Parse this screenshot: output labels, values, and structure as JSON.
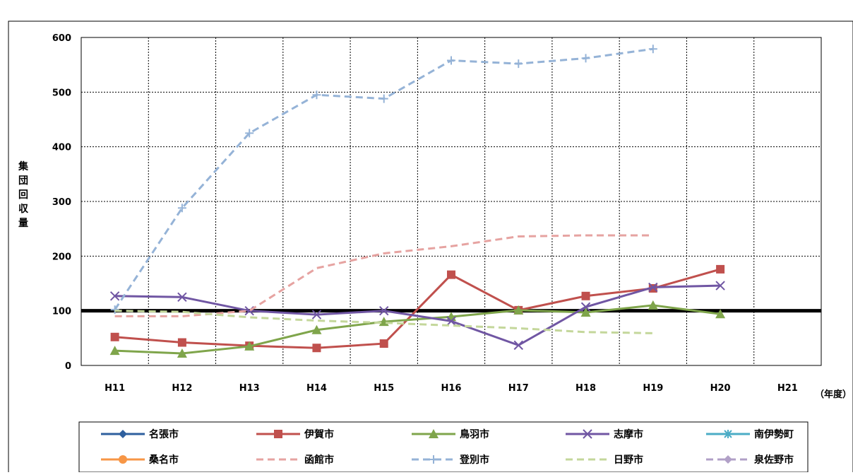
{
  "chart_data": {
    "type": "line",
    "title": "",
    "xlabel": "",
    "x_unit": "（年度）",
    "ylabel": "集団回収量",
    "ylim": [
      0,
      600
    ],
    "yticks": [
      0,
      100,
      200,
      300,
      400,
      500,
      600
    ],
    "grid": true,
    "reference_line": 100,
    "legend_position": "bottom",
    "categories": [
      "H11",
      "H12",
      "H13",
      "H14",
      "H15",
      "H16",
      "H17",
      "H18",
      "H19",
      "H20",
      "H21"
    ],
    "series": [
      {
        "name": "名張市",
        "color": "#2e5f9e",
        "style": "solid",
        "marker": "diamond",
        "values": [
          null,
          null,
          null,
          null,
          null,
          null,
          null,
          null,
          null,
          null,
          null
        ]
      },
      {
        "name": "伊賀市",
        "color": "#c0504d",
        "style": "solid",
        "marker": "square",
        "values": [
          52,
          42,
          36,
          32,
          40,
          166,
          101,
          127,
          141,
          176,
          null
        ]
      },
      {
        "name": "鳥羽市",
        "color": "#7fa54b",
        "style": "solid",
        "marker": "triangle",
        "values": [
          27,
          22,
          35,
          65,
          80,
          89,
          101,
          97,
          110,
          94,
          null
        ]
      },
      {
        "name": "志摩市",
        "color": "#7056a3",
        "style": "solid",
        "marker": "x",
        "values": [
          127,
          125,
          100,
          93,
          100,
          81,
          37,
          107,
          143,
          146,
          null
        ]
      },
      {
        "name": "南伊勢町",
        "color": "#4bacc6",
        "style": "solid",
        "marker": "star",
        "values": [
          null,
          null,
          null,
          null,
          null,
          null,
          null,
          null,
          null,
          null,
          null
        ]
      },
      {
        "name": "桑名市",
        "color": "#f79646",
        "style": "solid",
        "marker": "circle",
        "values": [
          null,
          null,
          null,
          null,
          null,
          null,
          null,
          null,
          null,
          null,
          null
        ]
      },
      {
        "name": "函館市",
        "color": "#e6a3a1",
        "style": "dashed",
        "marker": "none",
        "values": [
          90,
          90,
          100,
          178,
          205,
          218,
          236,
          238,
          238,
          null,
          null
        ]
      },
      {
        "name": "登別市",
        "color": "#95b3d7",
        "style": "dashed",
        "marker": "plus",
        "values": [
          102,
          288,
          425,
          495,
          488,
          558,
          552,
          562,
          579,
          null,
          null
        ]
      },
      {
        "name": "日野市",
        "color": "#c4d79b",
        "style": "dashed",
        "marker": "none",
        "values": [
          100,
          98,
          88,
          82,
          78,
          73,
          68,
          61,
          59,
          null,
          null
        ]
      },
      {
        "name": "泉佐野市",
        "color": "#b1a0c7",
        "style": "dashed",
        "marker": "diamond",
        "values": [
          null,
          null,
          null,
          null,
          null,
          null,
          null,
          null,
          null,
          null,
          null
        ]
      }
    ]
  }
}
